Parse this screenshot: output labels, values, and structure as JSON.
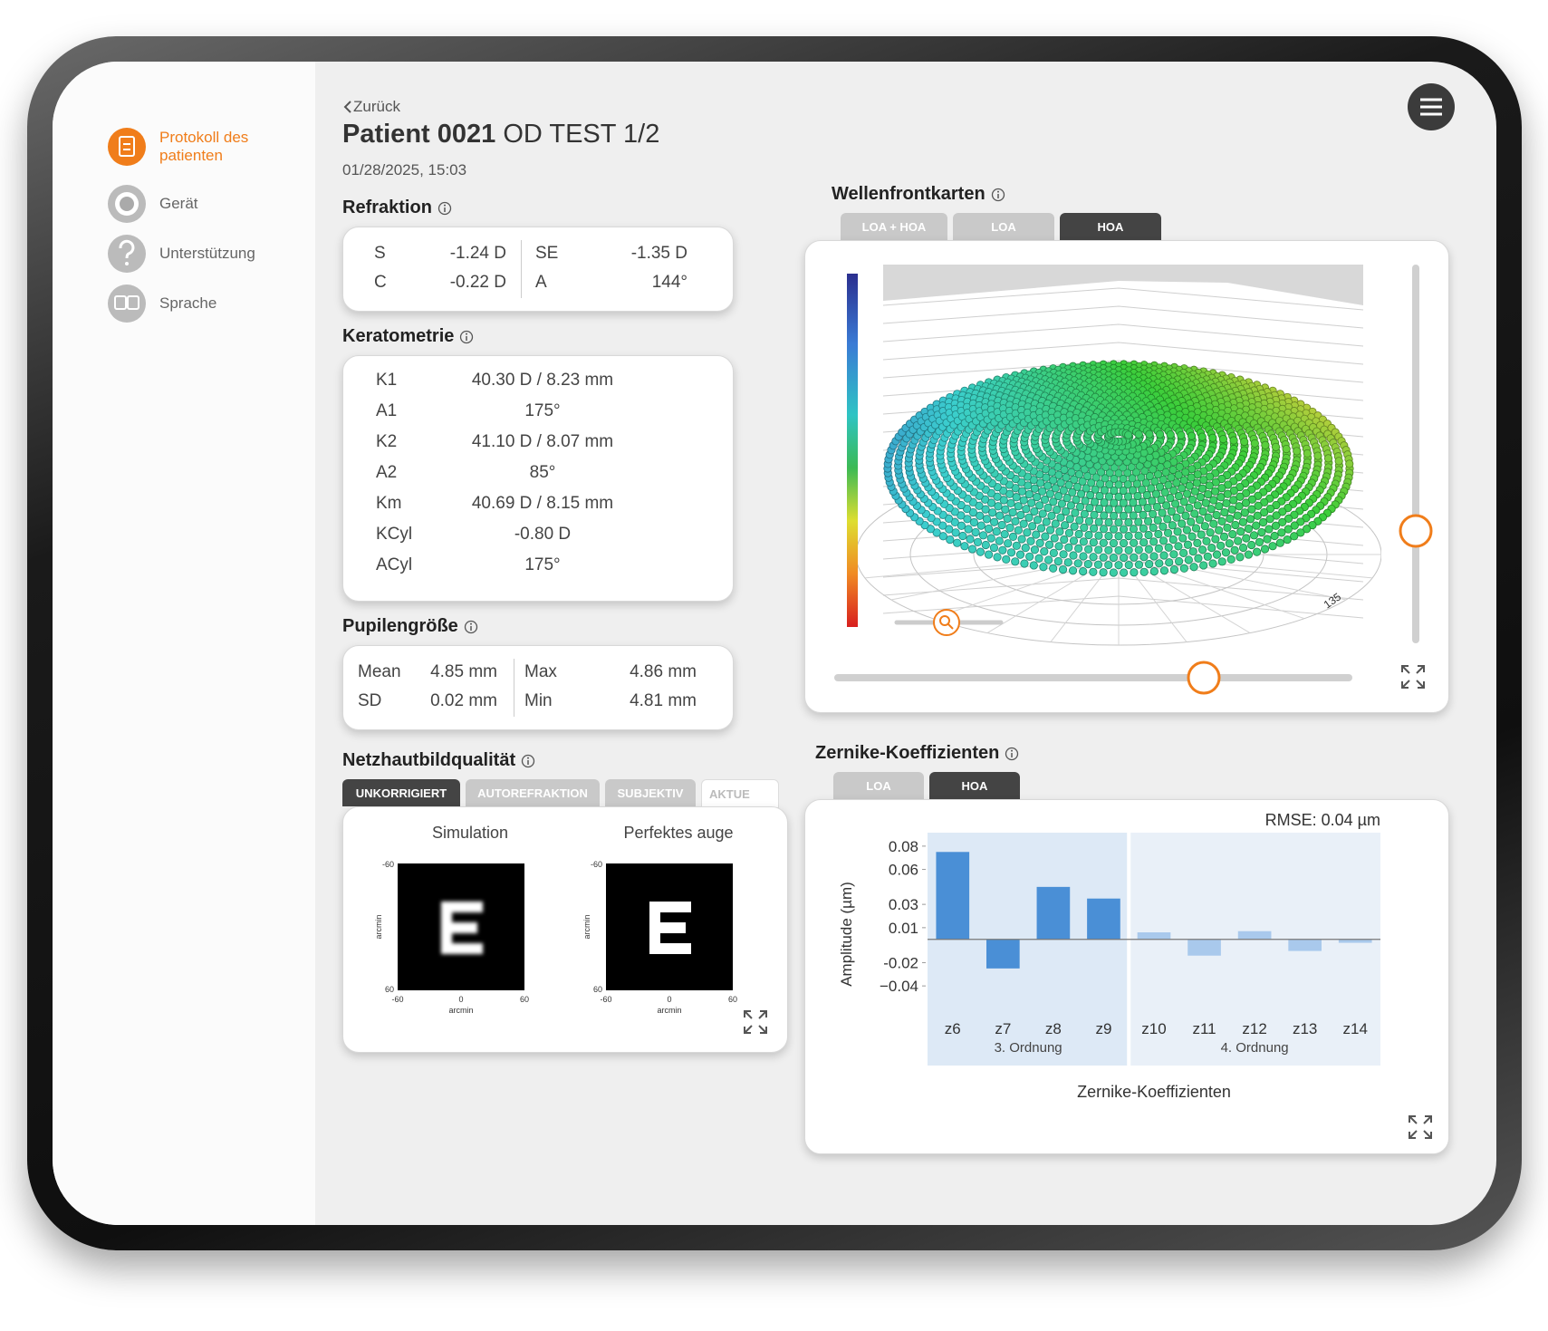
{
  "sidebar": {
    "items": [
      {
        "label": "Protokoll des patienten",
        "active": true
      },
      {
        "label": "Gerät",
        "active": false
      },
      {
        "label": "Unterstützung",
        "active": false
      },
      {
        "label": "Sprache",
        "active": false
      }
    ]
  },
  "header": {
    "back": "Zurück",
    "patient": "Patient 0021",
    "eye_test": "OD TEST 1/2",
    "datetime": "01/28/2025, 15:03"
  },
  "refraktion": {
    "title": "Refraktion",
    "rows": [
      [
        "S",
        "-1.24 D",
        "SE",
        "-1.35 D"
      ],
      [
        "C",
        "-0.22 D",
        "A",
        "144°"
      ]
    ]
  },
  "keratometrie": {
    "title": "Keratometrie",
    "rows": [
      [
        "K1",
        "40.30 D / 8.23 mm"
      ],
      [
        "A1",
        "175°"
      ],
      [
        "K2",
        "41.10 D / 8.07 mm"
      ],
      [
        "A2",
        "85°"
      ],
      [
        "Km",
        "40.69 D / 8.15 mm"
      ],
      [
        "KCyl",
        "-0.80 D"
      ],
      [
        "ACyl",
        "175°"
      ]
    ]
  },
  "pupillen": {
    "title": "Pupilengröße",
    "rows": [
      [
        "Mean",
        "4.85 mm",
        "Max",
        "4.86 mm"
      ],
      [
        "SD",
        "0.02 mm",
        "Min",
        "4.81 mm"
      ]
    ]
  },
  "netzhaut": {
    "title": "Netzhautbildqualität",
    "tabs": [
      "UNKORRIGIERT",
      "AUTOREFRAKTION",
      "SUBJEKTIV",
      "AKTUE"
    ],
    "active_tab": 0,
    "panels": [
      {
        "title": "Simulation",
        "blurred": true
      },
      {
        "title": "Perfektes auge",
        "blurred": false
      }
    ],
    "axes": {
      "y_min": "-60",
      "y_max": "60",
      "x_min": "-60",
      "x_mid": "0",
      "x_max": "60",
      "label": "arcmin"
    }
  },
  "wellenfront": {
    "title": "Wellenfrontkarten",
    "tabs": [
      "LOA + HOA",
      "LOA",
      "HOA"
    ],
    "active_tab": 2,
    "angle_label": "135"
  },
  "chart_data": {
    "type": "bar",
    "title": "Zernike-Koeffizienten",
    "tabs": [
      "LOA",
      "HOA"
    ],
    "active_tab": 1,
    "annotation": "RMSE: 0.04 µm",
    "y_label": "Amplitude (µm)",
    "x_label": "Zernike-Koeffizienten",
    "ylim": [
      -0.05,
      0.09
    ],
    "yticks": [
      0.08,
      0.06,
      0.03,
      0.01,
      -0.02,
      {
        "value": -0.04,
        "label": "−0.04"
      }
    ],
    "groups": [
      {
        "name": "3. Ordnung",
        "color": "#4a8fd6",
        "band_color": "#dde9f6",
        "categories": [
          "z6",
          "z7",
          "z8",
          "z9"
        ],
        "values": [
          0.075,
          -0.025,
          0.045,
          0.035
        ]
      },
      {
        "name": "4. Ordnung",
        "color": "#a9c9ec",
        "band_color": "#e9f0f8",
        "categories": [
          "z10",
          "z11",
          "z12",
          "z13",
          "z14"
        ],
        "values": [
          0.006,
          -0.014,
          0.007,
          -0.01,
          -0.003
        ]
      }
    ]
  }
}
